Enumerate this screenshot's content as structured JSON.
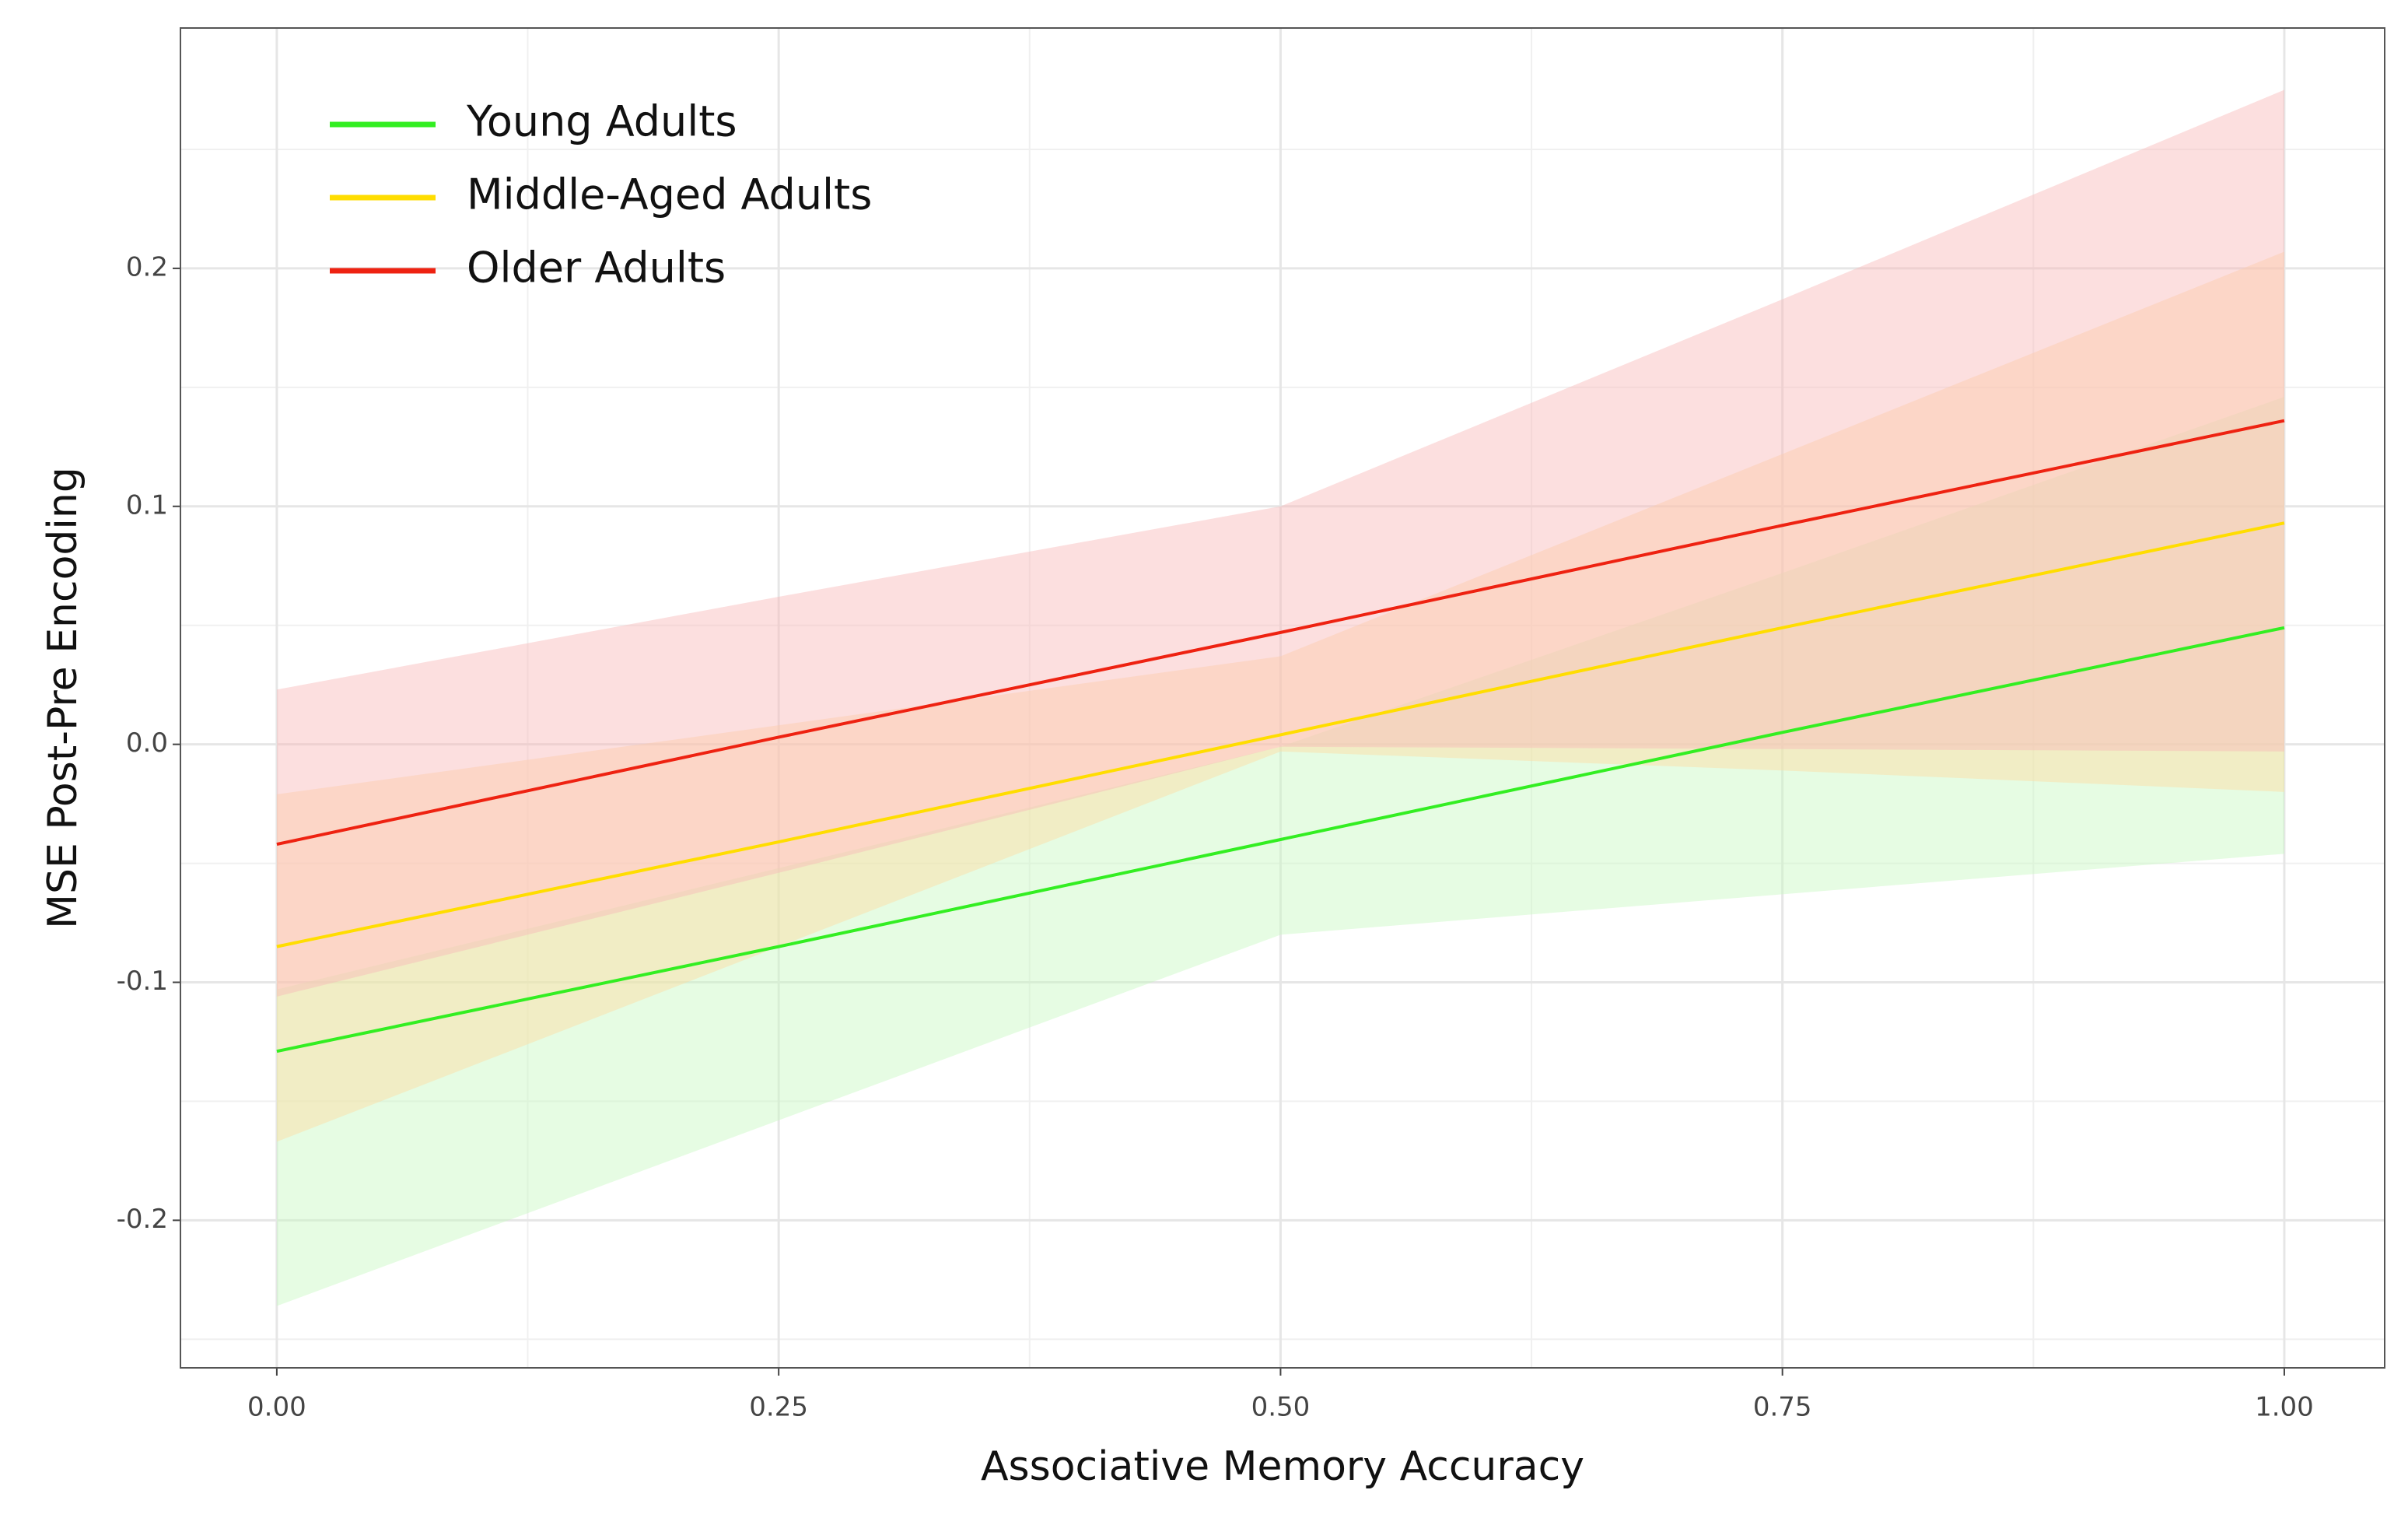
{
  "chart_data": {
    "type": "line",
    "x_label": "Associative Memory Accuracy",
    "y_label": "MSE Post-Pre Encoding",
    "x": [
      0,
      0.25,
      0.5,
      0.75,
      1
    ],
    "xlim": [
      -0.048,
      1.05
    ],
    "ylim": [
      -0.262,
      0.301
    ],
    "xticks": [
      {
        "value": 0,
        "label": "0.00"
      },
      {
        "value": 0.25,
        "label": "0.25"
      },
      {
        "value": 0.5,
        "label": "0.50"
      },
      {
        "value": 0.75,
        "label": "0.75"
      },
      {
        "value": 1,
        "label": "1.00"
      }
    ],
    "yticks": [
      -0.2,
      -0.1,
      {
        "value": 0,
        "label": "0.0"
      },
      0.1,
      0.2
    ],
    "x_minor_ticks": [
      0.125,
      0.375,
      0.625,
      0.875
    ],
    "y_minor_ticks": [
      -0.25,
      -0.15,
      -0.05,
      0.05,
      0.15,
      0.25
    ],
    "grid": true,
    "legend": "top-left",
    "series": [
      {
        "name": "Young Adults",
        "color": "#33ee22",
        "band_color": "#c8f8c0",
        "values": [
          -0.129,
          -0.085,
          -0.04,
          0.005,
          0.049
        ],
        "lower": [
          -0.236,
          -0.158,
          -0.08,
          -0.063,
          -0.046
        ],
        "upper": [
          -0.103,
          -0.052,
          -0.001,
          0.072,
          0.146
        ]
      },
      {
        "name": "Middle-Aged Adults",
        "color": "#ffdd00",
        "band_color": "#ffdca0",
        "values": [
          -0.085,
          -0.041,
          0.004,
          0.049,
          0.093
        ],
        "lower": [
          -0.167,
          -0.085,
          -0.003,
          -0.011,
          -0.02
        ],
        "upper": [
          -0.021,
          0.008,
          0.037,
          0.122,
          0.207
        ]
      },
      {
        "name": "Older Adults",
        "color": "#ee2211",
        "band_color": "#f8b8b8",
        "values": [
          -0.042,
          0.003,
          0.047,
          0.092,
          0.136
        ],
        "lower": [
          -0.106,
          -0.054,
          -0.001,
          -0.002,
          -0.003
        ],
        "upper": [
          0.023,
          0.062,
          0.1,
          0.187,
          0.275
        ]
      }
    ]
  }
}
